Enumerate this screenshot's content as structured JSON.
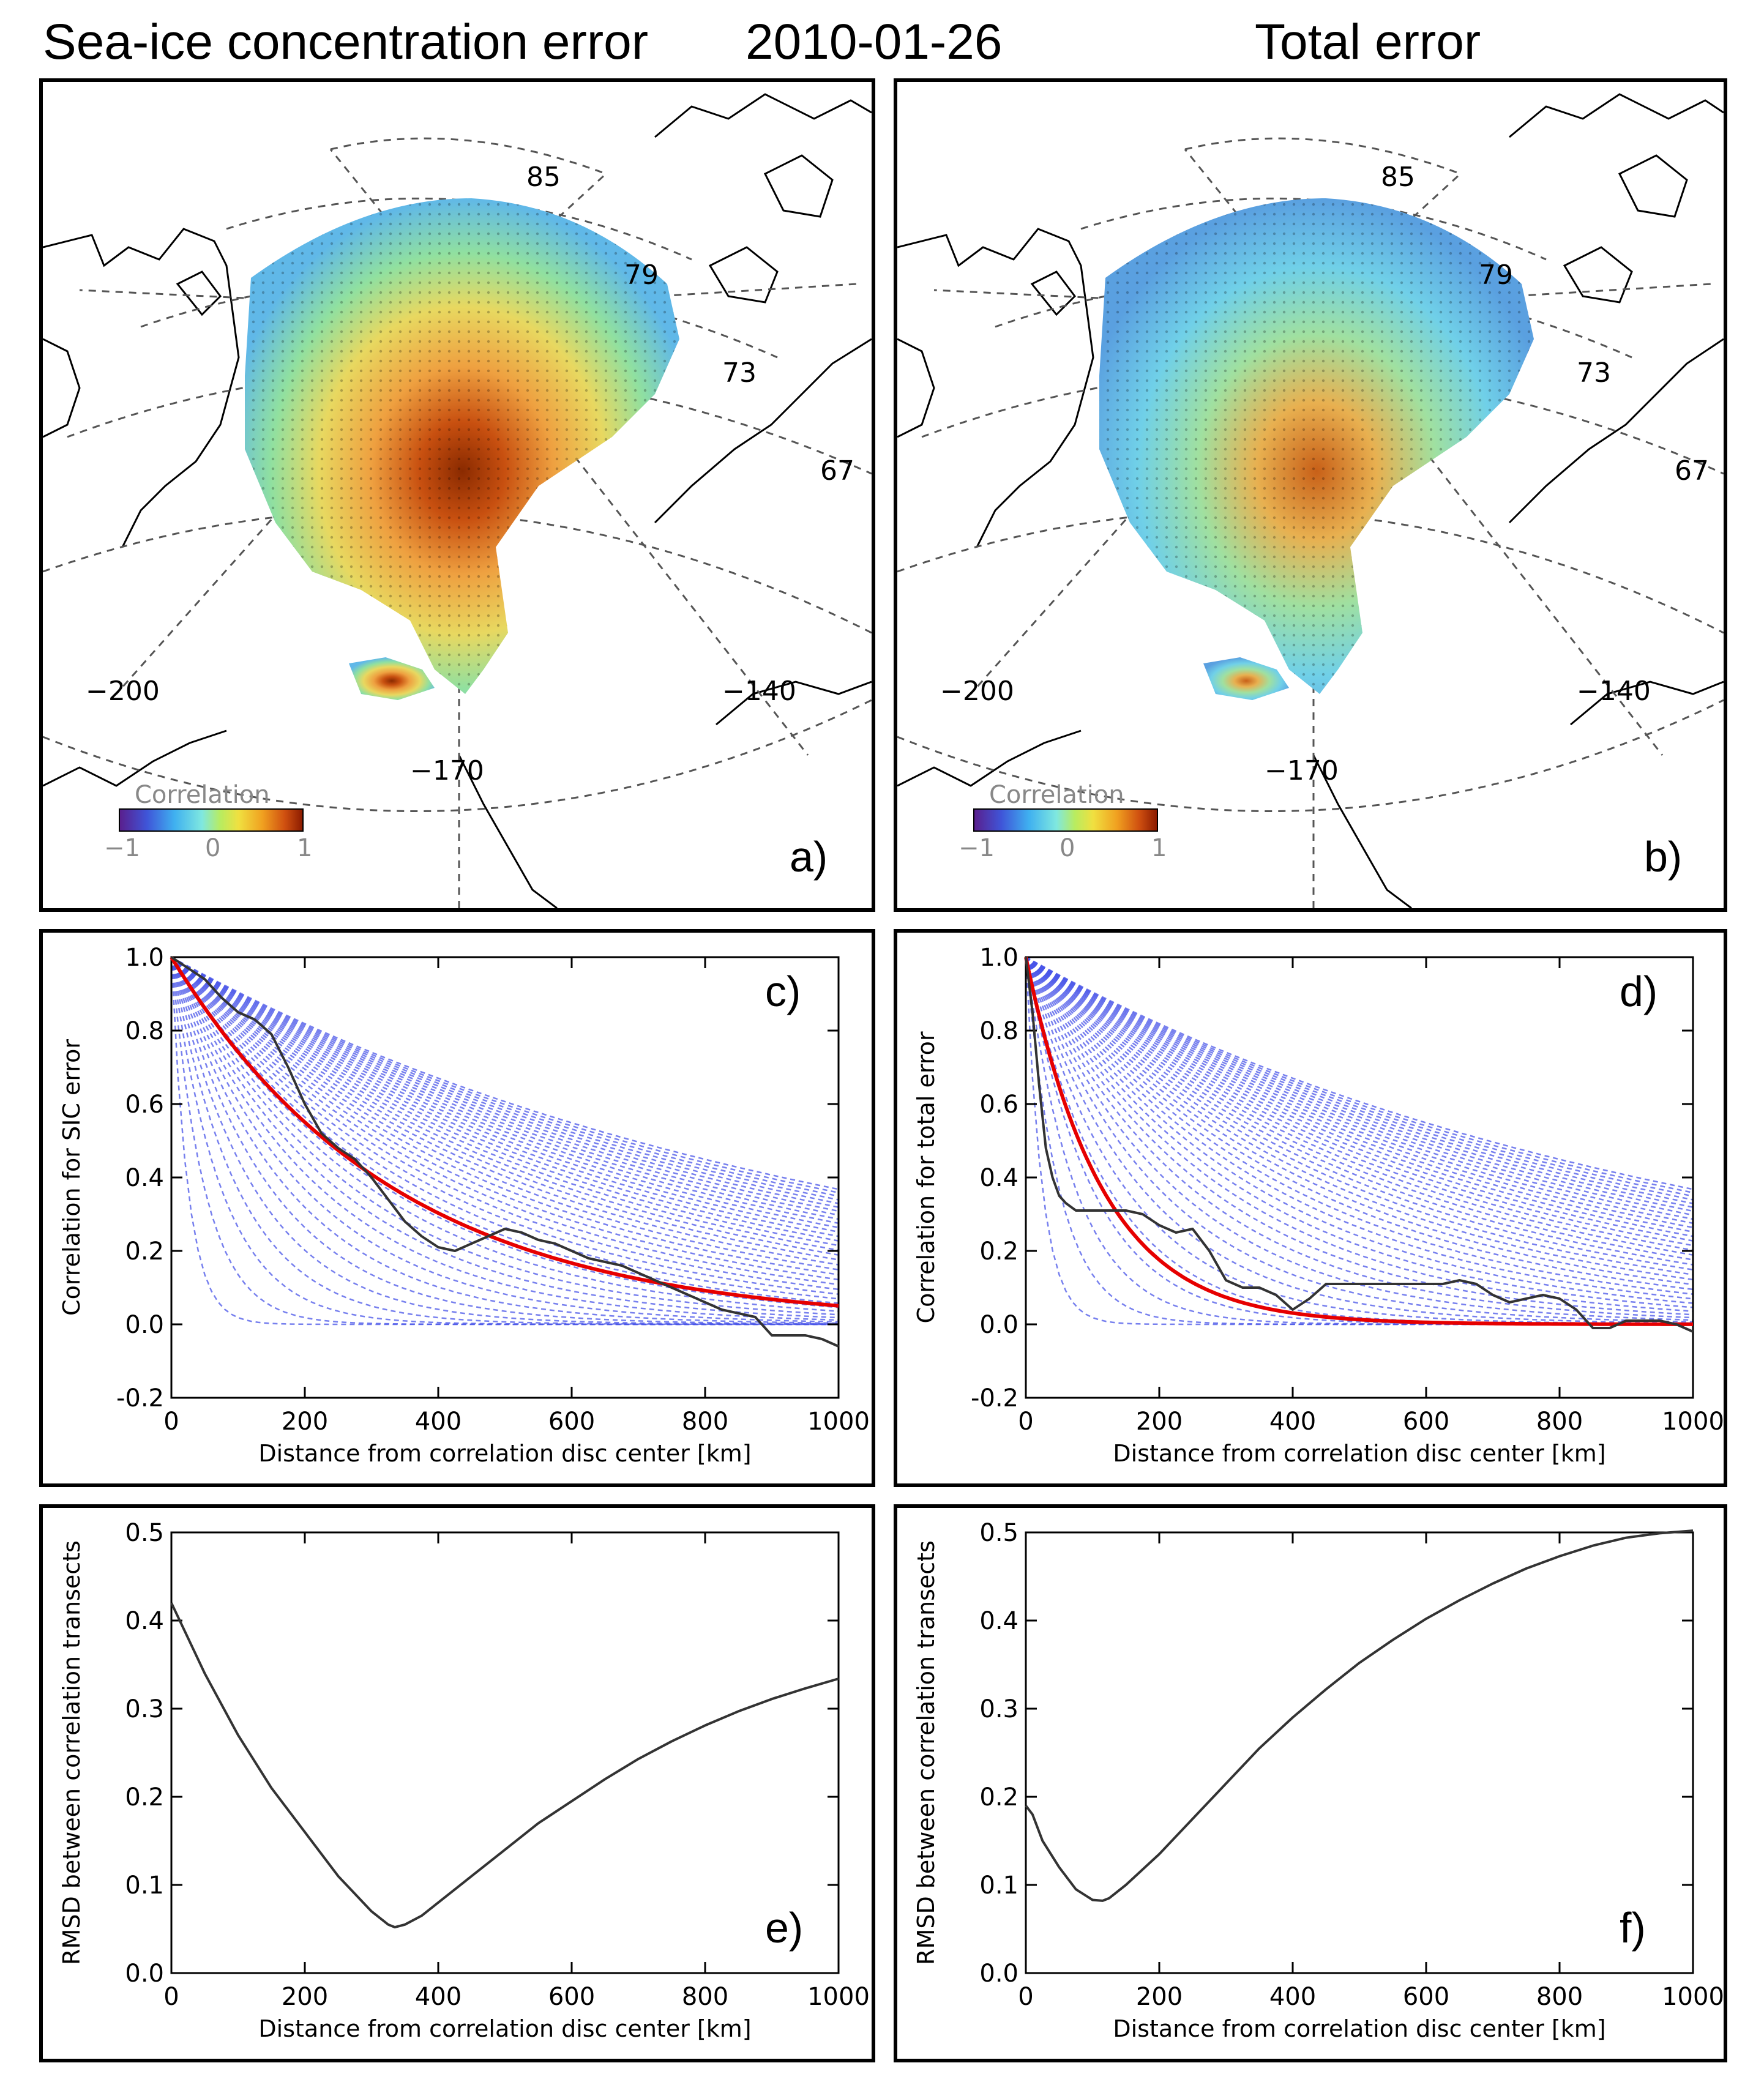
{
  "titles": {
    "left": "Sea-ice concentration error",
    "date": "2010-01-26",
    "right": "Total error"
  },
  "maps": [
    {
      "label": "a)",
      "colorbar": {
        "title": "Correlation",
        "ticks": [
          "−1",
          "0",
          "1"
        ]
      },
      "lat_labels": [
        "85",
        "79",
        "73",
        "67"
      ],
      "lon_labels": [
        "−200",
        "−170",
        "−140"
      ]
    },
    {
      "label": "b)",
      "colorbar": {
        "title": "Correlation",
        "ticks": [
          "−1",
          "0",
          "1"
        ]
      },
      "lat_labels": [
        "85",
        "79",
        "73",
        "67"
      ],
      "lon_labels": [
        "−200",
        "−170",
        "−140"
      ]
    }
  ],
  "chart_data": [
    {
      "id": "c",
      "type": "line",
      "label": "c)",
      "xlabel": "Distance from correlation disc center [km]",
      "ylabel": "Correlation for SIC error",
      "xlim": [
        0,
        1000
      ],
      "ylim": [
        -0.2,
        1.0
      ],
      "xticks": [
        0,
        200,
        400,
        600,
        800,
        1000
      ],
      "yticks": [
        -0.2,
        0.0,
        0.2,
        0.4,
        0.6,
        0.8,
        1.0
      ],
      "xtick_labels": [
        "0",
        "200",
        "400",
        "600",
        "800",
        "1000"
      ],
      "ytick_labels": [
        "-0.2",
        "0.0",
        "0.2",
        "0.4",
        "0.6",
        "0.8",
        "1.0"
      ],
      "candidate_scales_km": [
        25,
        50,
        75,
        100,
        125,
        150,
        175,
        200,
        225,
        250,
        275,
        300,
        325,
        350,
        375,
        400,
        425,
        450,
        475,
        500,
        525,
        550,
        575,
        600,
        625,
        650,
        675,
        700,
        725,
        750,
        775,
        800,
        825,
        850,
        875,
        900,
        925,
        950,
        975,
        1000
      ],
      "best_fit_scale_km": 335,
      "series": [
        {
          "name": "observed correlation",
          "color": "#333333",
          "x": [
            0,
            25,
            50,
            75,
            100,
            125,
            150,
            175,
            200,
            225,
            250,
            275,
            300,
            325,
            350,
            375,
            400,
            425,
            450,
            475,
            500,
            525,
            550,
            575,
            600,
            625,
            650,
            675,
            700,
            725,
            750,
            775,
            800,
            825,
            850,
            875,
            900,
            925,
            950,
            975,
            1000
          ],
          "values": [
            1.0,
            0.97,
            0.94,
            0.89,
            0.85,
            0.83,
            0.79,
            0.7,
            0.6,
            0.52,
            0.48,
            0.45,
            0.4,
            0.34,
            0.28,
            0.24,
            0.21,
            0.2,
            0.22,
            0.24,
            0.26,
            0.25,
            0.23,
            0.22,
            0.2,
            0.18,
            0.17,
            0.16,
            0.14,
            0.12,
            0.1,
            0.08,
            0.06,
            0.04,
            0.03,
            0.02,
            -0.03,
            -0.03,
            -0.03,
            -0.04,
            -0.06
          ]
        },
        {
          "name": "best-fit exponential",
          "color": "#e60000"
        }
      ]
    },
    {
      "id": "d",
      "type": "line",
      "label": "d)",
      "xlabel": "Distance from correlation disc center [km]",
      "ylabel": "Correlation for total error",
      "xlim": [
        0,
        1000
      ],
      "ylim": [
        -0.2,
        1.0
      ],
      "xticks": [
        0,
        200,
        400,
        600,
        800,
        1000
      ],
      "yticks": [
        -0.2,
        0.0,
        0.2,
        0.4,
        0.6,
        0.8,
        1.0
      ],
      "xtick_labels": [
        "0",
        "200",
        "400",
        "600",
        "800",
        "1000"
      ],
      "ytick_labels": [
        "-0.2",
        "0.0",
        "0.2",
        "0.4",
        "0.6",
        "0.8",
        "1.0"
      ],
      "candidate_scales_km": [
        25,
        50,
        75,
        100,
        125,
        150,
        175,
        200,
        225,
        250,
        275,
        300,
        325,
        350,
        375,
        400,
        425,
        450,
        475,
        500,
        525,
        550,
        575,
        600,
        625,
        650,
        675,
        700,
        725,
        750,
        775,
        800,
        825,
        850,
        875,
        900,
        925,
        950,
        975,
        1000
      ],
      "best_fit_scale_km": 115,
      "series": [
        {
          "name": "observed correlation",
          "color": "#333333",
          "x": [
            0,
            10,
            20,
            30,
            40,
            50,
            60,
            75,
            100,
            125,
            150,
            175,
            200,
            225,
            250,
            275,
            300,
            325,
            350,
            375,
            400,
            425,
            450,
            475,
            500,
            525,
            550,
            575,
            600,
            625,
            650,
            675,
            700,
            725,
            750,
            775,
            800,
            825,
            850,
            875,
            900,
            925,
            950,
            975,
            1000
          ],
          "values": [
            1.0,
            0.85,
            0.65,
            0.48,
            0.4,
            0.35,
            0.33,
            0.31,
            0.31,
            0.31,
            0.31,
            0.3,
            0.27,
            0.25,
            0.26,
            0.2,
            0.12,
            0.1,
            0.1,
            0.08,
            0.04,
            0.07,
            0.11,
            0.11,
            0.11,
            0.11,
            0.11,
            0.11,
            0.11,
            0.11,
            0.12,
            0.11,
            0.08,
            0.06,
            0.07,
            0.08,
            0.07,
            0.04,
            -0.01,
            -0.01,
            0.01,
            0.01,
            0.01,
            0.0,
            -0.02
          ]
        },
        {
          "name": "best-fit exponential",
          "color": "#e60000"
        }
      ]
    },
    {
      "id": "e",
      "type": "line",
      "label": "e)",
      "xlabel": "Distance from correlation disc center [km]",
      "ylabel": "RMSD between correlation transects",
      "xlim": [
        0,
        1000
      ],
      "ylim": [
        0.0,
        0.5
      ],
      "xticks": [
        0,
        200,
        400,
        600,
        800,
        1000
      ],
      "yticks": [
        0.0,
        0.1,
        0.2,
        0.3,
        0.4,
        0.5
      ],
      "xtick_labels": [
        "0",
        "200",
        "400",
        "600",
        "800",
        "1000"
      ],
      "ytick_labels": [
        "0.0",
        "0.1",
        "0.2",
        "0.3",
        "0.4",
        "0.5"
      ],
      "series": [
        {
          "name": "RMSD",
          "color": "#333333",
          "x": [
            0,
            25,
            50,
            100,
            150,
            200,
            250,
            300,
            325,
            335,
            350,
            375,
            400,
            450,
            500,
            550,
            600,
            650,
            700,
            750,
            800,
            850,
            900,
            950,
            1000
          ],
          "values": [
            0.42,
            0.38,
            0.34,
            0.27,
            0.21,
            0.16,
            0.11,
            0.07,
            0.055,
            0.052,
            0.055,
            0.065,
            0.08,
            0.11,
            0.14,
            0.17,
            0.195,
            0.22,
            0.243,
            0.263,
            0.281,
            0.297,
            0.311,
            0.323,
            0.334
          ]
        }
      ]
    },
    {
      "id": "f",
      "type": "line",
      "label": "f)",
      "xlabel": "Distance from correlation disc center [km]",
      "ylabel": "RMSD between correlation transects",
      "xlim": [
        0,
        1000
      ],
      "ylim": [
        0.0,
        0.5
      ],
      "xticks": [
        0,
        200,
        400,
        600,
        800,
        1000
      ],
      "yticks": [
        0.0,
        0.1,
        0.2,
        0.3,
        0.4,
        0.5
      ],
      "xtick_labels": [
        "0",
        "200",
        "400",
        "600",
        "800",
        "1000"
      ],
      "ytick_labels": [
        "0.0",
        "0.1",
        "0.2",
        "0.3",
        "0.4",
        "0.5"
      ],
      "series": [
        {
          "name": "RMSD",
          "color": "#333333",
          "x": [
            0,
            10,
            25,
            50,
            75,
            100,
            115,
            125,
            150,
            200,
            250,
            300,
            350,
            400,
            450,
            500,
            550,
            600,
            650,
            700,
            750,
            800,
            850,
            900,
            950,
            1000
          ],
          "values": [
            0.19,
            0.18,
            0.15,
            0.12,
            0.095,
            0.083,
            0.082,
            0.085,
            0.1,
            0.135,
            0.175,
            0.215,
            0.255,
            0.29,
            0.322,
            0.352,
            0.378,
            0.402,
            0.423,
            0.442,
            0.459,
            0.473,
            0.485,
            0.494,
            0.499,
            0.502
          ]
        }
      ]
    }
  ]
}
